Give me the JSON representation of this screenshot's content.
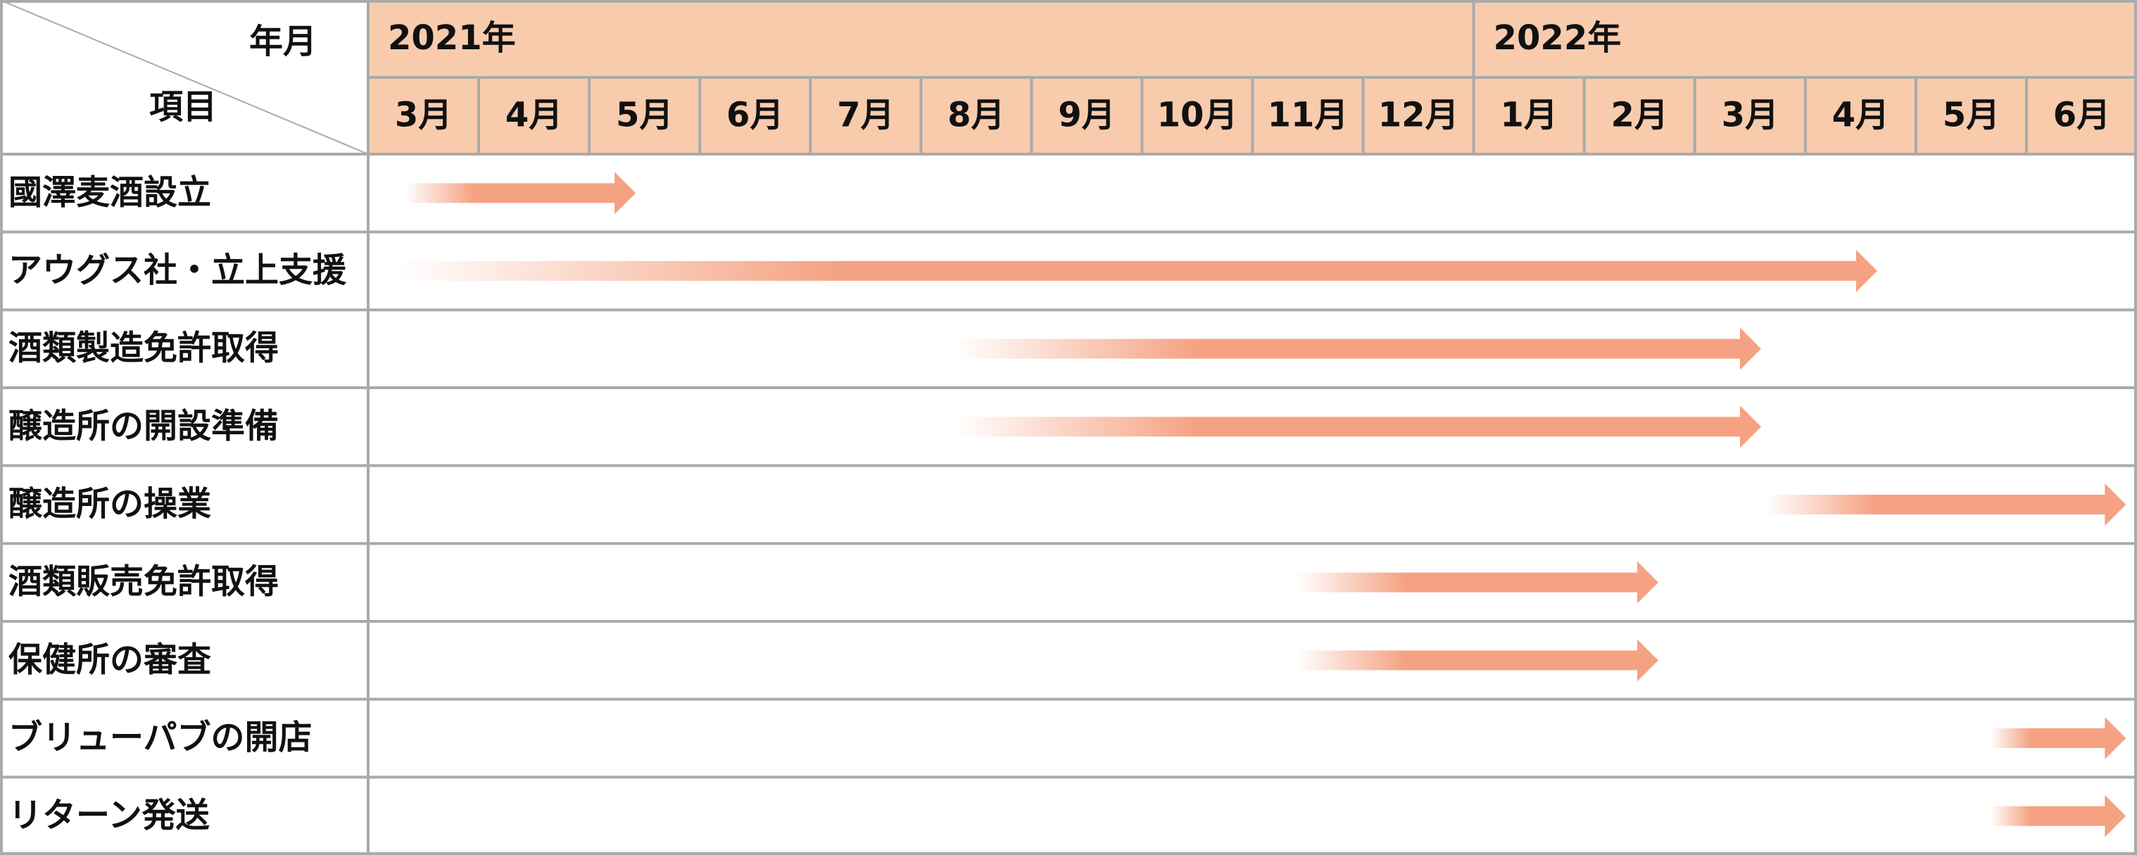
{
  "corner": {
    "top": "年月",
    "bottom": "項目"
  },
  "years": [
    {
      "label": "2021年",
      "span": 10
    },
    {
      "label": "2022年",
      "span": 6
    }
  ],
  "months": [
    "3月",
    "4月",
    "5月",
    "6月",
    "7月",
    "8月",
    "9月",
    "10月",
    "11月",
    "12月",
    "1月",
    "2月",
    "3月",
    "4月",
    "5月",
    "6月"
  ],
  "arrow_color": "#f5a282",
  "header_color": "#f8cbad",
  "tasks": [
    {
      "label": "國澤麦酒設立",
      "start": 0.33,
      "end": 2.42
    },
    {
      "label": "アウグス社・立上支援",
      "start": 0.25,
      "end": 13.65
    },
    {
      "label": "酒類製造免許取得",
      "start": 5.3,
      "end": 12.6
    },
    {
      "label": "醸造所の開設準備",
      "start": 5.3,
      "end": 12.6
    },
    {
      "label": "醸造所の操業",
      "start": 12.65,
      "end": 15.9
    },
    {
      "label": "酒類販売免許取得",
      "start": 8.4,
      "end": 11.67
    },
    {
      "label": "保健所の審査",
      "start": 8.4,
      "end": 11.67
    },
    {
      "label": "ブリューパブの開店",
      "start": 14.67,
      "end": 15.9
    },
    {
      "label": "リターン発送",
      "start": 14.67,
      "end": 15.9
    }
  ]
}
